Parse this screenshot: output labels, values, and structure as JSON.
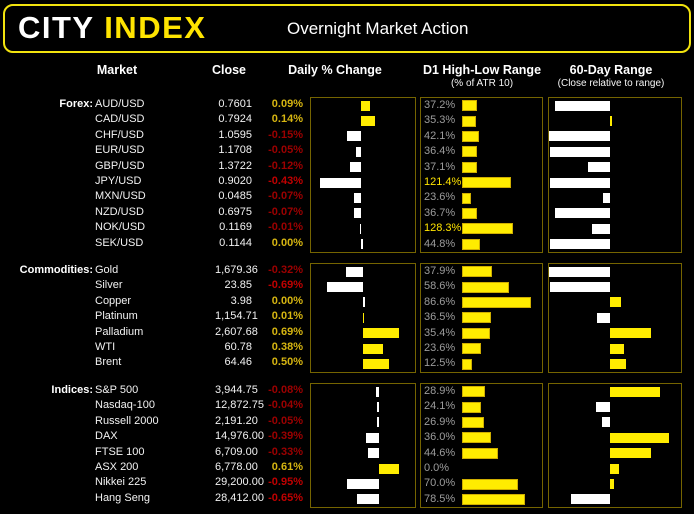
{
  "header": {
    "logo_city": "CITY",
    "logo_index": "INDEX",
    "title": "Overnight Market Action"
  },
  "columns": {
    "market": "Market",
    "close": "Close",
    "daily": "Daily % Change",
    "d1": "D1 High-Low Range",
    "d1_sub": "(% of ATR 10)",
    "range60": "60-Day Range",
    "range60_sub": "(Close relative to range)"
  },
  "colors": {
    "background": "#000000",
    "header_border": "#f2e30e",
    "logo_yellow": "#ffe400",
    "bar_yellow": "#ffec00",
    "bar_white": "#ffffff",
    "box_border": "#756400",
    "pct_positive": "#d6b511",
    "pct_negative": "#9c0000",
    "pct_negative_strong": "#c00000",
    "d1_label_gray": "#9c9c9c",
    "d1_label_highlight": "#ffe400",
    "text": "#f2f2f2"
  },
  "sections": [
    {
      "label": "Forex:",
      "daily_axis": [
        -0.52,
        0.56
      ],
      "d1_max": 200,
      "rows": [
        {
          "market": "AUD/USD",
          "close": "0.7601",
          "change": "0.09%",
          "change_val": 0.09,
          "d1": "37.2%",
          "d1_val": 37.2,
          "range60": -0.91
        },
        {
          "market": "CAD/USD",
          "close": "0.7924",
          "change": "0.14%",
          "change_val": 0.14,
          "d1": "35.3%",
          "d1_val": 35.3,
          "range60": 0.03
        },
        {
          "market": "CHF/USD",
          "close": "1.0595",
          "change": "-0.15%",
          "change_val": -0.15,
          "d1": "42.1%",
          "d1_val": 42.1,
          "range60": -1.0
        },
        {
          "market": "EUR/USD",
          "close": "1.1708",
          "change": "-0.05%",
          "change_val": -0.05,
          "d1": "36.4%",
          "d1_val": 36.4,
          "range60": -0.98
        },
        {
          "market": "GBP/USD",
          "close": "1.3722",
          "change": "-0.12%",
          "change_val": -0.12,
          "d1": "37.1%",
          "d1_val": 37.1,
          "range60": -0.36
        },
        {
          "market": "JPY/USD",
          "close": "0.9020",
          "change": "-0.43%",
          "change_val": -0.43,
          "d1": "121.4%",
          "d1_val": 121.4,
          "range60": -0.98
        },
        {
          "market": "MXN/USD",
          "close": "0.0485",
          "change": "-0.07%",
          "change_val": -0.07,
          "d1": "23.6%",
          "d1_val": 23.6,
          "range60": -0.11
        },
        {
          "market": "NZD/USD",
          "close": "0.6975",
          "change": "-0.07%",
          "change_val": -0.07,
          "d1": "36.7%",
          "d1_val": 36.7,
          "range60": -0.91
        },
        {
          "market": "NOK/USD",
          "close": "0.1169",
          "change": "-0.01%",
          "change_val": -0.01,
          "d1": "128.3%",
          "d1_val": 128.3,
          "range60": -0.3
        },
        {
          "market": "SEK/USD",
          "close": "0.1144",
          "change": "0.00%",
          "change_val": 0.0,
          "d1": "44.8%",
          "d1_val": 44.8,
          "range60": -0.98
        }
      ]
    },
    {
      "label": "Commodities:",
      "daily_axis": [
        -1.0,
        1.0
      ],
      "d1_max": 100,
      "rows": [
        {
          "market": "Gold",
          "close": "1,679.36",
          "change": "-0.32%",
          "change_val": -0.32,
          "d1": "37.9%",
          "d1_val": 37.9,
          "range60": -1.0
        },
        {
          "market": "Silver",
          "close": "23.85",
          "change": "-0.69%",
          "change_val": -0.69,
          "d1": "58.6%",
          "d1_val": 58.6,
          "range60": -0.98
        },
        {
          "market": "Copper",
          "close": "3.98",
          "change": "0.00%",
          "change_val": 0.0,
          "d1": "86.6%",
          "d1_val": 86.6,
          "range60": 0.16
        },
        {
          "market": "Platinum",
          "close": "1,154.71",
          "change": "0.01%",
          "change_val": 0.01,
          "d1": "36.5%",
          "d1_val": 36.5,
          "range60": -0.22
        },
        {
          "market": "Palladium",
          "close": "2,607.68",
          "change": "0.69%",
          "change_val": 0.69,
          "d1": "35.4%",
          "d1_val": 35.4,
          "range60": 0.58
        },
        {
          "market": "WTI",
          "close": "60.78",
          "change": "0.38%",
          "change_val": 0.38,
          "d1": "23.6%",
          "d1_val": 23.6,
          "range60": 0.2
        },
        {
          "market": "Brent",
          "close": "64.46",
          "change": "0.50%",
          "change_val": 0.5,
          "d1": "12.5%",
          "d1_val": 12.5,
          "range60": 0.23
        }
      ]
    },
    {
      "label": "Indices:",
      "daily_axis": [
        -2.0,
        1.07
      ],
      "d1_max": 100,
      "rows": [
        {
          "market": "S&P 500",
          "close": "3,944.75",
          "change": "-0.08%",
          "change_val": -0.08,
          "d1": "28.9%",
          "d1_val": 28.9,
          "range60": 0.7
        },
        {
          "market": "Nasdaq-100",
          "close": "12,872.75",
          "change": "-0.04%",
          "change_val": -0.04,
          "d1": "24.1%",
          "d1_val": 24.1,
          "range60": -0.23
        },
        {
          "market": "Russell 2000",
          "close": "2,191.20",
          "change": "-0.05%",
          "change_val": -0.05,
          "d1": "26.9%",
          "d1_val": 26.9,
          "range60": -0.14
        },
        {
          "market": "DAX",
          "close": "14,976.00",
          "change": "-0.39%",
          "change_val": -0.39,
          "d1": "36.0%",
          "d1_val": 36.0,
          "range60": 0.83
        },
        {
          "market": "FTSE 100",
          "close": "6,709.00",
          "change": "-0.33%",
          "change_val": -0.33,
          "d1": "44.6%",
          "d1_val": 44.6,
          "range60": 0.58
        },
        {
          "market": "ASX 200",
          "close": "6,778.00",
          "change": "0.61%",
          "change_val": 0.61,
          "d1": "0.0%",
          "d1_val": 0.0,
          "range60": 0.13
        },
        {
          "market": "Nikkei 225",
          "close": "29,200.00",
          "change": "-0.95%",
          "change_val": -0.95,
          "d1": "70.0%",
          "d1_val": 70.0,
          "range60": 0.06
        },
        {
          "market": "Hang Seng",
          "close": "28,412.00",
          "change": "-0.65%",
          "change_val": -0.65,
          "d1": "78.5%",
          "d1_val": 78.5,
          "range60": -0.64
        }
      ]
    }
  ],
  "chart_data": [
    {
      "type": "bar",
      "orientation": "horizontal",
      "title": "Daily % Change",
      "categories": [
        "AUD/USD",
        "CAD/USD",
        "CHF/USD",
        "EUR/USD",
        "GBP/USD",
        "JPY/USD",
        "MXN/USD",
        "NZD/USD",
        "NOK/USD",
        "SEK/USD",
        "Gold",
        "Silver",
        "Copper",
        "Platinum",
        "Palladium",
        "WTI",
        "Brent",
        "S&P 500",
        "Nasdaq-100",
        "Russell 2000",
        "DAX",
        "FTSE 100",
        "ASX 200",
        "Nikkei 225",
        "Hang Seng"
      ],
      "values": [
        0.09,
        0.14,
        -0.15,
        -0.05,
        -0.12,
        -0.43,
        -0.07,
        -0.07,
        -0.01,
        0.0,
        -0.32,
        -0.69,
        0.0,
        0.01,
        0.69,
        0.38,
        0.5,
        -0.08,
        -0.04,
        -0.05,
        -0.39,
        -0.33,
        0.61,
        -0.95,
        -0.65
      ],
      "unit": "%",
      "xlim_by_section": {
        "Forex": [
          -0.52,
          0.56
        ],
        "Commodities": [
          -1.0,
          1.0
        ],
        "Indices": [
          -2.0,
          1.07
        ]
      },
      "legend": "negative bars white (left of zero), positive bars yellow (right of zero)",
      "grid": false
    },
    {
      "type": "bar",
      "orientation": "horizontal",
      "title": "D1 High-Low Range (% of ATR 10)",
      "categories": [
        "AUD/USD",
        "CAD/USD",
        "CHF/USD",
        "EUR/USD",
        "GBP/USD",
        "JPY/USD",
        "MXN/USD",
        "NZD/USD",
        "NOK/USD",
        "SEK/USD",
        "Gold",
        "Silver",
        "Copper",
        "Platinum",
        "Palladium",
        "WTI",
        "Brent",
        "S&P 500",
        "Nasdaq-100",
        "Russell 2000",
        "DAX",
        "FTSE 100",
        "ASX 200",
        "Nikkei 225",
        "Hang Seng"
      ],
      "values": [
        37.2,
        35.3,
        42.1,
        36.4,
        37.1,
        121.4,
        23.6,
        36.7,
        128.3,
        44.8,
        37.9,
        58.6,
        86.6,
        36.5,
        35.4,
        23.6,
        12.5,
        28.9,
        24.1,
        26.9,
        36.0,
        44.6,
        0.0,
        70.0,
        78.5
      ],
      "unit": "%",
      "xlim_by_section": {
        "Forex": [
          0,
          200
        ],
        "Commodities": [
          0,
          100
        ],
        "Indices": [
          0,
          100
        ]
      },
      "legend": "values >= 100% labelled in yellow, others gray",
      "grid": false
    },
    {
      "type": "bar",
      "orientation": "horizontal",
      "title": "60-Day Range (Close relative to range)",
      "categories": [
        "AUD/USD",
        "CAD/USD",
        "CHF/USD",
        "EUR/USD",
        "GBP/USD",
        "JPY/USD",
        "MXN/USD",
        "NZD/USD",
        "NOK/USD",
        "SEK/USD",
        "Gold",
        "Silver",
        "Copper",
        "Platinum",
        "Palladium",
        "WTI",
        "Brent",
        "S&P 500",
        "Nasdaq-100",
        "Russell 2000",
        "DAX",
        "FTSE 100",
        "ASX 200",
        "Nikkei 225",
        "Hang Seng"
      ],
      "values": [
        -0.91,
        0.03,
        -1.0,
        -0.98,
        -0.36,
        -0.98,
        -0.11,
        -0.91,
        -0.3,
        -0.98,
        -1.0,
        -0.98,
        0.16,
        -0.22,
        0.58,
        0.2,
        0.23,
        0.7,
        -0.23,
        -0.14,
        0.83,
        0.58,
        0.13,
        0.06,
        -0.64
      ],
      "note": "signed fraction from range midpoint: negative = white bar extending left (close in lower half), positive = yellow bar extending right (close in upper half)",
      "grid": false
    }
  ]
}
